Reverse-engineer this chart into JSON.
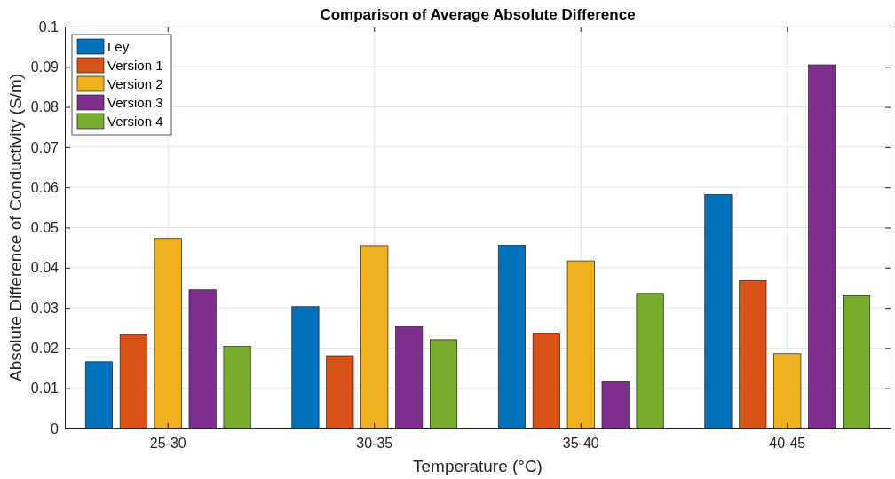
{
  "chart_data": {
    "type": "bar",
    "title": "Comparison of Average Absolute Difference",
    "xlabel": "Temperature (°C)",
    "ylabel": "Absolute Difference of Conductivity (S/m)",
    "categories": [
      "25-30",
      "30-35",
      "35-40",
      "40-45"
    ],
    "series": [
      {
        "name": "Ley",
        "color": "#0072bd",
        "values": [
          0.0166,
          0.0303,
          0.0456,
          0.0582
        ]
      },
      {
        "name": "Version 1",
        "color": "#d95319",
        "values": [
          0.0234,
          0.0181,
          0.0237,
          0.0368
        ]
      },
      {
        "name": "Version 2",
        "color": "#edb120",
        "values": [
          0.0473,
          0.0455,
          0.0417,
          0.0186
        ]
      },
      {
        "name": "Version 3",
        "color": "#7e2f8e",
        "values": [
          0.0345,
          0.0253,
          0.0117,
          0.0905
        ]
      },
      {
        "name": "Version 4",
        "color": "#77ac30",
        "values": [
          0.0204,
          0.0221,
          0.0336,
          0.033
        ]
      }
    ],
    "ylim": [
      0,
      0.1
    ],
    "yticks": [
      0,
      0.01,
      0.02,
      0.03,
      0.04,
      0.05,
      0.06,
      0.07,
      0.08,
      0.09,
      0.1
    ],
    "grid": true,
    "legend": "top left"
  }
}
